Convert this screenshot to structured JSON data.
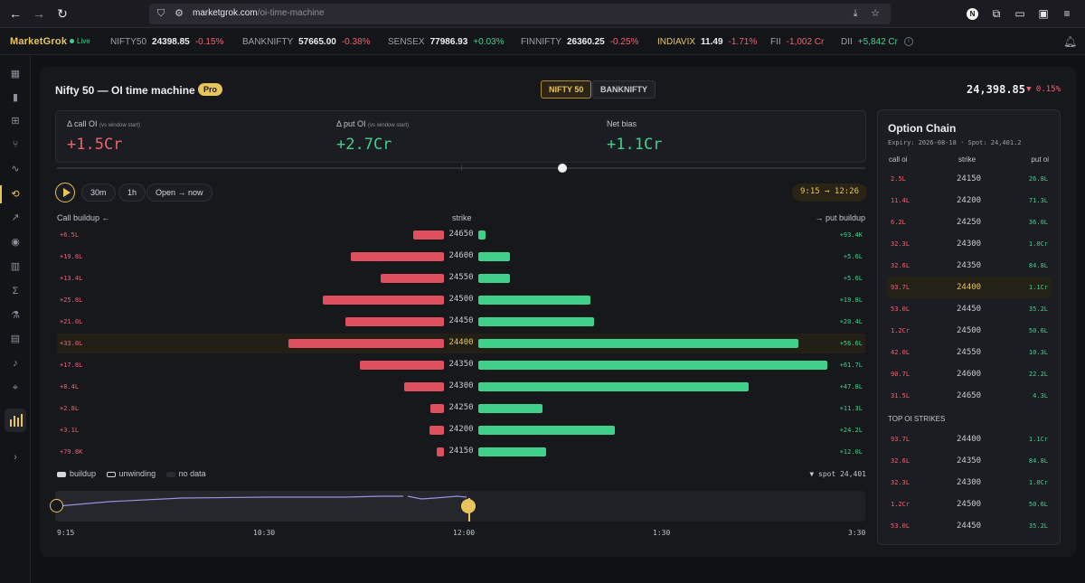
{
  "browser": {
    "url_domain": "marketgrok.com",
    "url_path": "/oi-time-machine"
  },
  "ticker": {
    "brand": "MarketGrok",
    "live": "Live",
    "items": [
      {
        "name": "NIFTY50",
        "price": "24398.85",
        "change": "-0.15%",
        "dir": "neg"
      },
      {
        "name": "BANKNIFTY",
        "price": "57665.00",
        "change": "-0.38%",
        "dir": "neg"
      },
      {
        "name": "SENSEX",
        "price": "77986.93",
        "change": "+0.03%",
        "dir": "pos"
      },
      {
        "name": "FINNIFTY",
        "price": "26360.25",
        "change": "-0.25%",
        "dir": "neg"
      },
      {
        "name": "INDIAVIX",
        "price": "11.49",
        "change": "-1.71%",
        "dir": "neg"
      }
    ],
    "flows": [
      {
        "name": "FII",
        "value": "-1,002 Cr",
        "dir": "neg"
      },
      {
        "name": "DII",
        "value": "+5,842 Cr",
        "dir": "pos"
      }
    ]
  },
  "page": {
    "title": "Nifty 50 — OI time machine",
    "badge": "Pro",
    "index_buttons": [
      "NIFTY 50",
      "BANKNIFTY"
    ],
    "spot_price": "24,398.85",
    "spot_change": "▼ 0.15%"
  },
  "stats": [
    {
      "label": "Δ call OI",
      "note": "(vs window start)",
      "value": "+1.5Cr",
      "dir": "neg"
    },
    {
      "label": "Δ put OI",
      "note": "(vs window start)",
      "value": "+2.7Cr",
      "dir": "pos"
    },
    {
      "label": "Net bias",
      "note": "",
      "value": "+1.1Cr",
      "dir": "pos"
    }
  ],
  "controls": {
    "presets": [
      "30m",
      "1h",
      "Open → now"
    ],
    "range": "9:15 → 12:26"
  },
  "chart_headers": {
    "left": "Call buildup ←",
    "center": "strike",
    "right": "→ put buildup"
  },
  "chart_data": {
    "type": "bar",
    "title": "",
    "strikes": [
      "24650",
      "24600",
      "24550",
      "24500",
      "24450",
      "24400",
      "24350",
      "24300",
      "24250",
      "24200",
      "24150"
    ],
    "call_labels": [
      "+6.5L",
      "+19.8L",
      "+13.4L",
      "+25.8L",
      "+21.0L",
      "+33.0L",
      "+17.8L",
      "+8.4L",
      "+2.8L",
      "+3.1L",
      "+79.8K"
    ],
    "put_labels": [
      "+93.4K",
      "+5.6L",
      "+5.6L",
      "+19.8L",
      "+20.4L",
      "+56.6L",
      "+61.7L",
      "+47.8L",
      "+11.3L",
      "+24.2L",
      "+12.0L"
    ],
    "call_buildup_lakh": [
      6.5,
      19.8,
      13.4,
      25.8,
      21.0,
      33.0,
      17.8,
      8.4,
      2.8,
      3.1,
      0.8
    ],
    "put_buildup_lakh": [
      0.93,
      5.6,
      5.6,
      19.8,
      20.4,
      56.6,
      61.7,
      47.8,
      11.3,
      24.2,
      12.0
    ],
    "highlight_strike": "24400",
    "colors": {
      "call": "#e04f5f",
      "put": "#3fd08a",
      "highlight": "#e8c45c"
    }
  },
  "legend": {
    "items": [
      "buildup",
      "unwinding",
      "no data"
    ],
    "spot": "▼ spot 24,401"
  },
  "timeline": {
    "labels": [
      "9:15",
      "10:30",
      "12:00",
      "1:30",
      "3:30"
    ],
    "progress": 0.51
  },
  "option_chain": {
    "title": "Option Chain",
    "subtitle": "Expiry: 2026-08-18 · Spot: 24,401.2",
    "headers": [
      "call oi",
      "strike",
      "put oi"
    ],
    "rows": [
      {
        "call": "2.5L",
        "strike": "24150",
        "put": "26.8L"
      },
      {
        "call": "11.4L",
        "strike": "24200",
        "put": "71.3L"
      },
      {
        "call": "6.2L",
        "strike": "24250",
        "put": "36.0L"
      },
      {
        "call": "32.3L",
        "strike": "24300",
        "put": "1.0Cr"
      },
      {
        "call": "32.6L",
        "strike": "24350",
        "put": "84.8L"
      },
      {
        "call": "93.7L",
        "strike": "24400",
        "put": "1.1Cr"
      },
      {
        "call": "53.0L",
        "strike": "24450",
        "put": "35.2L"
      },
      {
        "call": "1.2Cr",
        "strike": "24500",
        "put": "50.6L"
      },
      {
        "call": "42.0L",
        "strike": "24550",
        "put": "10.3L"
      },
      {
        "call": "90.7L",
        "strike": "24600",
        "put": "22.2L"
      },
      {
        "call": "31.5L",
        "strike": "24650",
        "put": "4.3L"
      }
    ],
    "highlight_strike": "24400",
    "top_title": "TOP OI STRIKES",
    "top_rows": [
      {
        "call": "93.7L",
        "strike": "24400",
        "put": "1.1Cr"
      },
      {
        "call": "32.6L",
        "strike": "24350",
        "put": "84.8L"
      },
      {
        "call": "32.3L",
        "strike": "24300",
        "put": "1.0Cr"
      },
      {
        "call": "1.2Cr",
        "strike": "24500",
        "put": "50.6L"
      },
      {
        "call": "53.0L",
        "strike": "24450",
        "put": "35.2L"
      }
    ]
  }
}
